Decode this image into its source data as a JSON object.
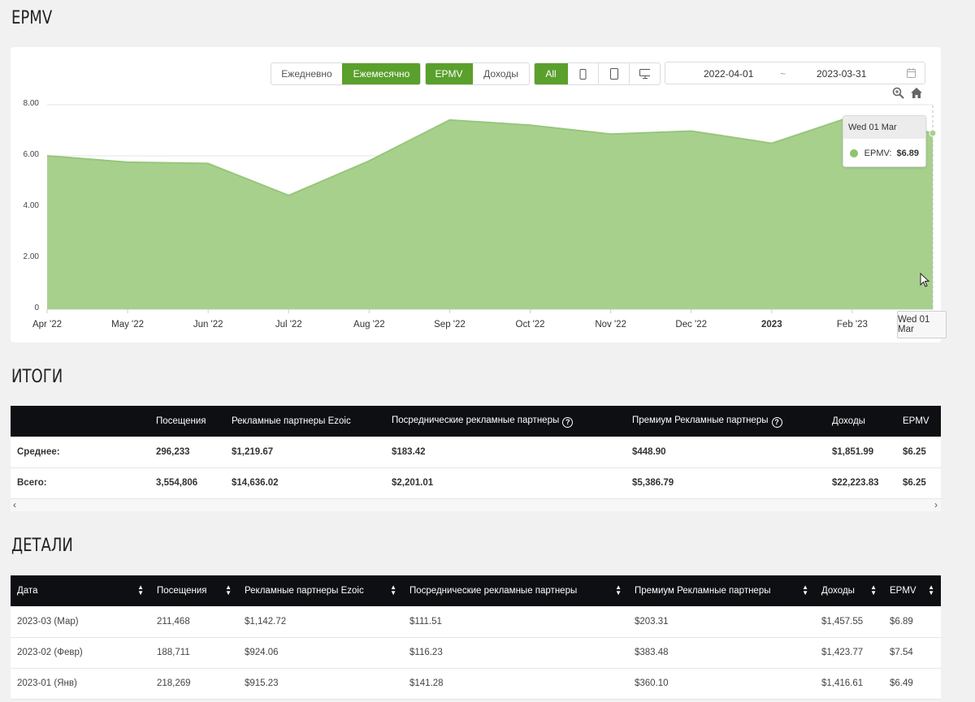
{
  "titles": {
    "epmv": "EPMV",
    "totals": "ИТОГИ",
    "details": "ДЕТАЛИ"
  },
  "toolbar": {
    "period": [
      {
        "label": "Ежедневно",
        "active": false
      },
      {
        "label": "Ежемесячно",
        "active": true
      }
    ],
    "metric": [
      {
        "label": "EPMV",
        "active": true
      },
      {
        "label": "Доходы",
        "active": false
      }
    ],
    "device_all": "All",
    "date_from": "2022-04-01",
    "date_sep": "~",
    "date_to": "2023-03-31"
  },
  "chart_data": {
    "type": "area",
    "x": [
      "Apr '22",
      "May '22",
      "Jun '22",
      "Jul '22",
      "Aug '22",
      "Sep '22",
      "Oct '22",
      "Nov '22",
      "Dec '22",
      "2023",
      "Feb '23",
      "Wed 01 Mar"
    ],
    "values": [
      6.0,
      5.75,
      5.7,
      4.45,
      5.8,
      7.4,
      7.2,
      6.85,
      6.97,
      6.49,
      7.54,
      6.89
    ],
    "yticks": [
      "8.00",
      "6.00",
      "4.00",
      "2.00",
      "0"
    ],
    "ylim": [
      0,
      8
    ],
    "grid": true,
    "color": "#a8d08d",
    "line_color": "#96c779"
  },
  "tooltip": {
    "date": "Wed 01 Mar",
    "label": "EPMV:",
    "value": "$6.89"
  },
  "crosshair_label": "Wed 01 Mar",
  "totals": {
    "headers": [
      "",
      "Посещения",
      "Рекламные партнеры Ezoic",
      "Посреднические рекламные партнеры",
      "Премиум Рекламные партнеры",
      "Доходы",
      "EPMV"
    ],
    "rows": [
      [
        "Среднее:",
        "296,233",
        "$1,219.67",
        "$183.42",
        "$448.90",
        "$1,851.99",
        "$6.25"
      ],
      [
        "Всего:",
        "3,554,806",
        "$14,636.02",
        "$2,201.01",
        "$5,386.79",
        "$22,223.83",
        "$6.25"
      ]
    ]
  },
  "details": {
    "headers": [
      "Дата",
      "Посещения",
      "Рекламные партнеры Ezoic",
      "Посреднические рекламные партнеры",
      "Премиум Рекламные партнеры",
      "Доходы",
      "EPMV"
    ],
    "rows": [
      [
        "2023-03 (Мар)",
        "211,468",
        "$1,142.72",
        "$111.51",
        "$203.31",
        "$1,457.55",
        "$6.89"
      ],
      [
        "2023-02 (Февр)",
        "188,711",
        "$924.06",
        "$116.23",
        "$383.48",
        "$1,423.77",
        "$7.54"
      ],
      [
        "2023-01 (Янв)",
        "218,269",
        "$915.23",
        "$141.28",
        "$360.10",
        "$1,416.61",
        "$6.49"
      ]
    ]
  }
}
